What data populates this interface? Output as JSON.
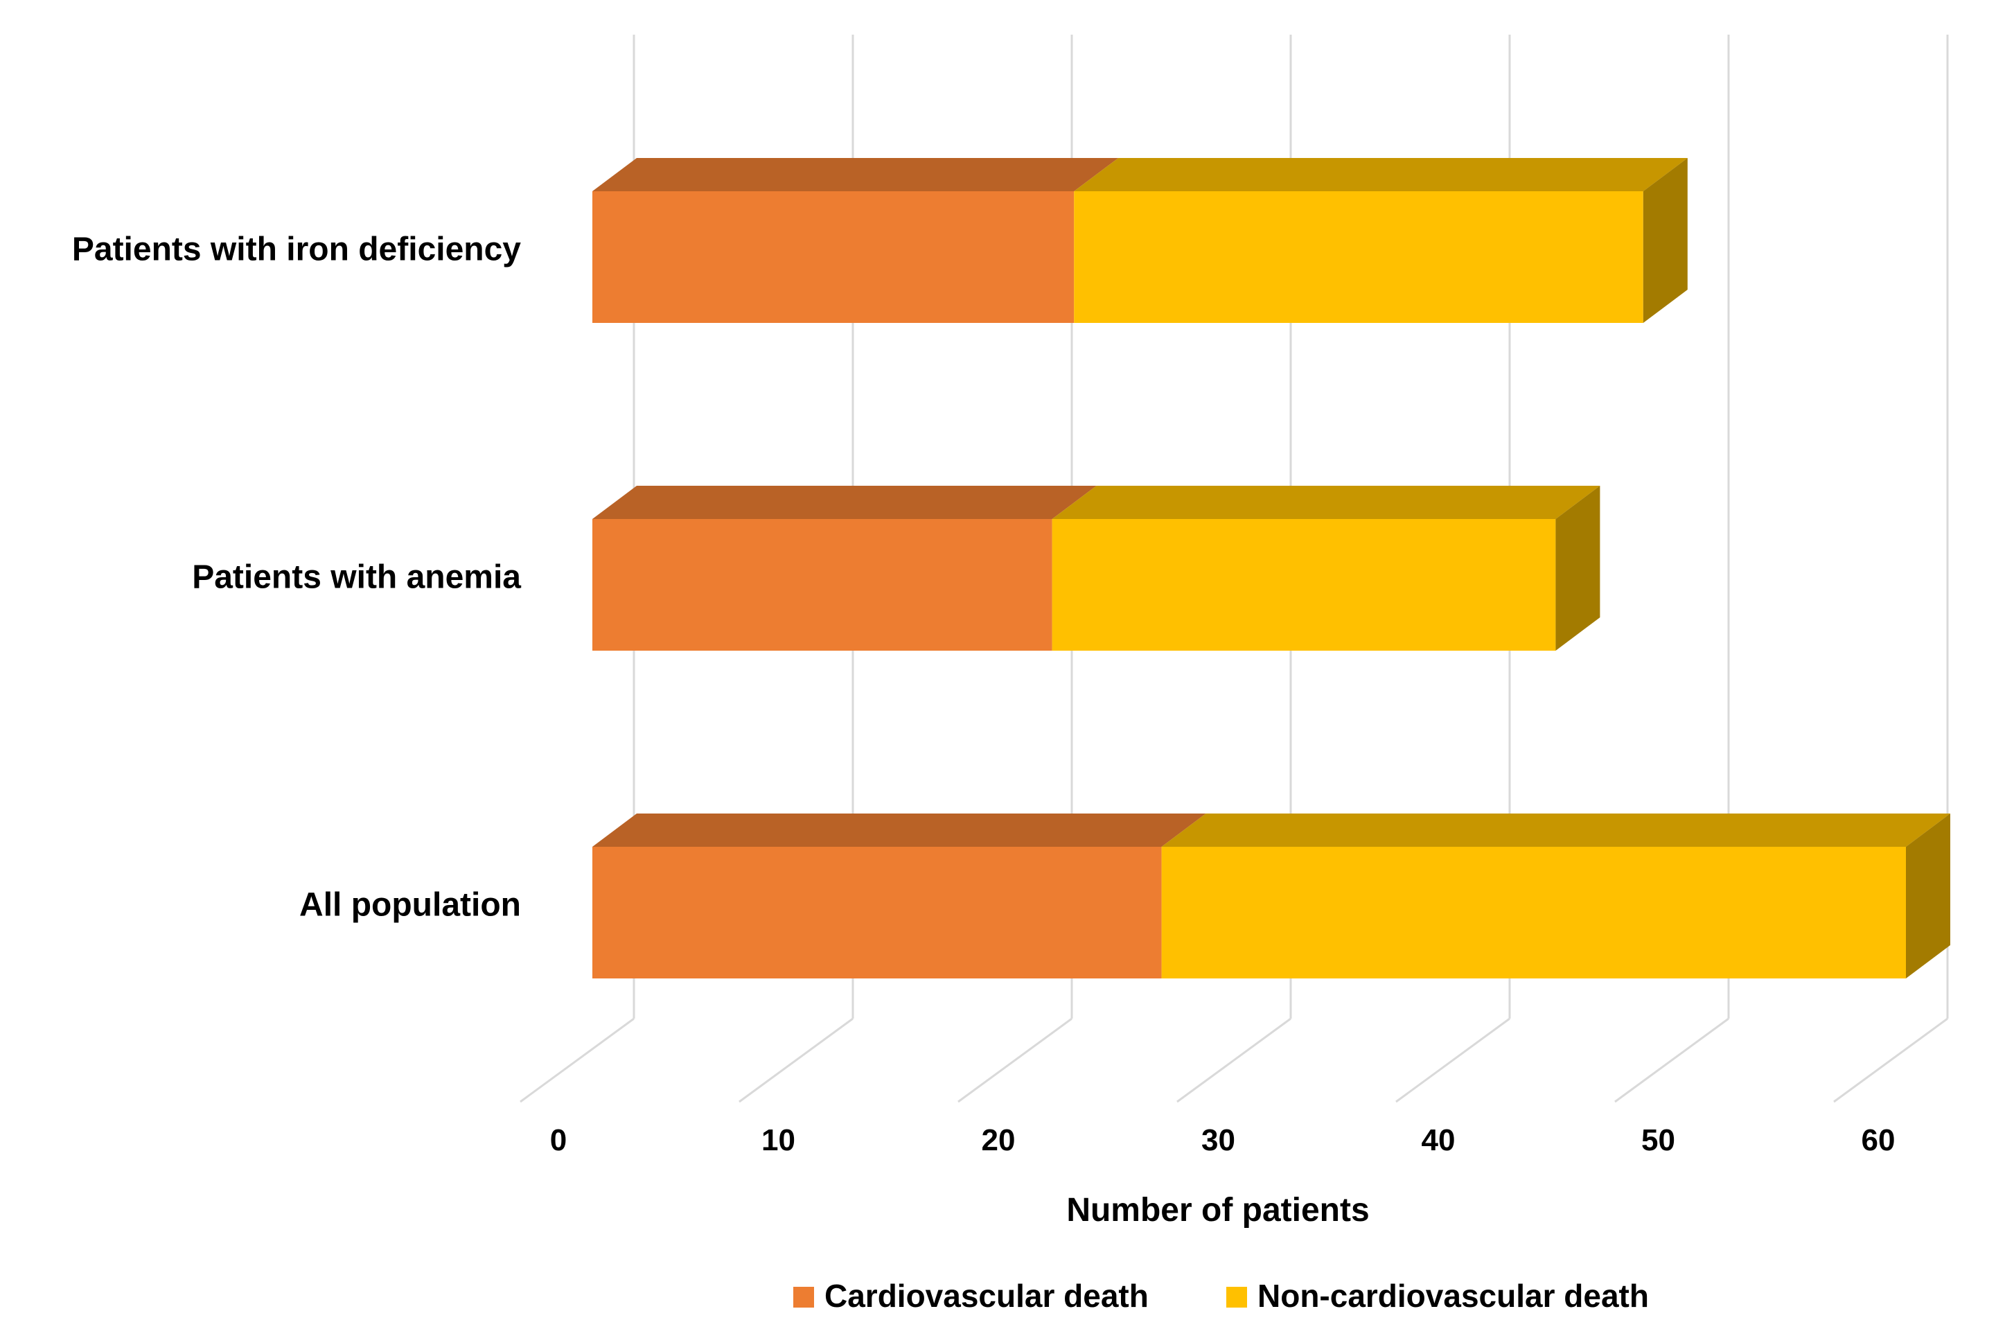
{
  "chart_data": {
    "type": "bar",
    "orientation": "horizontal",
    "stacked": true,
    "style": "3d",
    "categories": [
      "Patients with iron deficiency",
      "Patients with anemia",
      "All population"
    ],
    "series": [
      {
        "name": "Cardiovascular death",
        "values": [
          22,
          21,
          26
        ],
        "color": "#ED7D31"
      },
      {
        "name": "Non-cardiovascular death",
        "values": [
          26,
          23,
          34
        ],
        "color": "#FFC000"
      }
    ],
    "xlabel": "Number of patients",
    "ylabel": "",
    "xlim": [
      0,
      60
    ],
    "xticks": [
      0,
      10,
      20,
      30,
      40,
      50,
      60
    ],
    "grid": true,
    "legend": "bottom",
    "title": ""
  }
}
